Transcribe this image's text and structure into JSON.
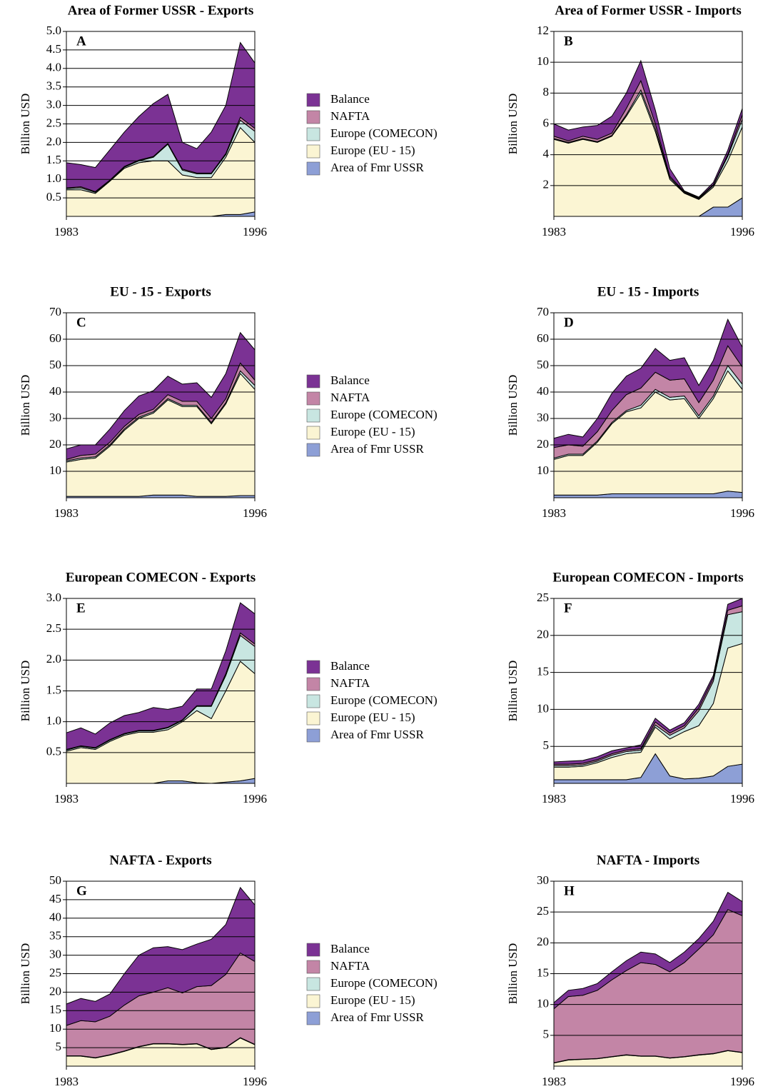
{
  "chart_data": [
    {
      "type": "area",
      "stacked": true,
      "title": "Area of Former USSR - Exports",
      "annotation": "A",
      "ylabel": "Billion USD",
      "legend": "right",
      "x": [
        1983,
        1984,
        1985,
        1986,
        1987,
        1988,
        1989,
        1990,
        1991,
        1992,
        1993,
        1994,
        1995,
        1996
      ],
      "xlim": [
        1983,
        1996
      ],
      "xticks": [
        1983,
        1996
      ],
      "ylim": [
        0,
        5
      ],
      "yticks": [
        0.5,
        {
          "value": 1,
          "label": "1.0"
        },
        1.5,
        {
          "value": 2,
          "label": "2.0"
        },
        2.5,
        {
          "value": 3,
          "label": "3.0"
        },
        3.5,
        {
          "value": 4,
          "label": "4.0"
        },
        4.5,
        {
          "value": 5,
          "label": "5.0"
        }
      ],
      "grid": true,
      "series": [
        {
          "name": "Balance",
          "color": "#7b3294",
          "values": [
            0.68,
            0.6,
            0.65,
            0.82,
            0.93,
            1.18,
            1.43,
            1.33,
            0.72,
            0.66,
            1.11,
            1.3,
            2.02,
            1.77
          ]
        },
        {
          "name": "NAFTA",
          "color": "#c385a6",
          "values": [
            0.02,
            0.03,
            0.02,
            0.01,
            0.02,
            0.02,
            0.02,
            0.02,
            0.03,
            0.02,
            0.02,
            0.03,
            0.08,
            0.08
          ]
        },
        {
          "name": "Europe (COMECON)",
          "color": "#c8e6e1",
          "values": [
            0.03,
            0.05,
            0.03,
            0.02,
            0.03,
            0.05,
            0.1,
            0.45,
            0.13,
            0.1,
            0.1,
            0.07,
            0.2,
            0.3
          ]
        },
        {
          "name": "Europe (EU - 15)",
          "color": "#fbf5d3",
          "values": [
            0.72,
            0.72,
            0.62,
            0.95,
            1.3,
            1.45,
            1.5,
            1.5,
            1.12,
            1.05,
            1.05,
            1.55,
            2.35,
            1.88
          ]
        },
        {
          "name": "Area of Fmr USSR",
          "color": "#8d9fd6",
          "values": [
            0,
            0,
            0,
            0,
            0,
            0,
            0,
            0,
            0,
            0,
            0,
            0.05,
            0.05,
            0.12
          ]
        }
      ]
    },
    {
      "type": "area",
      "stacked": true,
      "title": "Area of Former USSR - Imports",
      "annotation": "B",
      "ylabel": "Billion USD",
      "x": [
        1983,
        1984,
        1985,
        1986,
        1987,
        1988,
        1989,
        1990,
        1991,
        1992,
        1993,
        1994,
        1995,
        1996
      ],
      "xlim": [
        1983,
        1996
      ],
      "xticks": [
        1983,
        1996
      ],
      "ylim": [
        0,
        12
      ],
      "yticks": [
        2,
        4,
        6,
        8,
        10,
        12
      ],
      "grid": true,
      "series": [
        {
          "color": "#7b3294",
          "values": [
            0.8,
            0.7,
            0.6,
            0.9,
            1.1,
            1.0,
            1.3,
            0.9,
            0.5,
            0.05,
            0.05,
            0.15,
            0.3,
            0.4
          ]
        },
        {
          "color": "#c385a6",
          "values": [
            0.15,
            0.1,
            0.15,
            0.15,
            0.15,
            0.4,
            0.6,
            0.3,
            0.1,
            0.05,
            0.05,
            0.05,
            0.1,
            0.3
          ]
        },
        {
          "color": "#c8e6e1",
          "values": [
            0.05,
            0.05,
            0.05,
            0.05,
            0.05,
            0.1,
            0.2,
            0.2,
            0.1,
            0.05,
            0.05,
            0.1,
            0.3,
            0.5
          ]
        },
        {
          "color": "#fbf5d3",
          "values": [
            5.0,
            4.75,
            5.0,
            4.8,
            5.2,
            6.5,
            8.0,
            5.5,
            2.4,
            1.5,
            1.1,
            1.3,
            3.0,
            4.6
          ]
        },
        {
          "color": "#8d9fd6",
          "values": [
            0,
            0,
            0,
            0,
            0,
            0,
            0,
            0,
            0,
            0,
            0,
            0.6,
            0.6,
            1.2
          ]
        }
      ]
    },
    {
      "type": "area",
      "stacked": true,
      "title": "EU - 15 - Exports",
      "annotation": "C",
      "ylabel": "Billion USD",
      "legend": "right",
      "x": [
        1983,
        1984,
        1985,
        1986,
        1987,
        1988,
        1989,
        1990,
        1991,
        1992,
        1993,
        1994,
        1995,
        1996
      ],
      "xlim": [
        1983,
        1996
      ],
      "xticks": [
        1983,
        1996
      ],
      "ylim": [
        0,
        70
      ],
      "yticks": [
        10,
        20,
        30,
        40,
        50,
        60,
        70
      ],
      "grid": true,
      "series": [
        {
          "name": "Balance",
          "color": "#7b3294",
          "values": [
            4,
            4,
            3.5,
            5,
            6,
            7,
            7,
            7,
            6.5,
            7,
            8,
            9.5,
            11.5,
            11.5
          ]
        },
        {
          "name": "NAFTA",
          "color": "#c385a6",
          "values": [
            0.5,
            1,
            1,
            1,
            1,
            1,
            1,
            1.5,
            1.5,
            1.5,
            1.5,
            1.5,
            3,
            2
          ]
        },
        {
          "name": "Europe (COMECON)",
          "color": "#c8e6e1",
          "values": [
            0.5,
            0.5,
            0.5,
            0.5,
            0.5,
            0.5,
            0.5,
            0.5,
            0.5,
            0.5,
            0.5,
            0.5,
            1,
            1.5
          ]
        },
        {
          "name": "Europe (EU - 15)",
          "color": "#fbf5d3",
          "values": [
            13,
            14,
            14.5,
            19,
            25,
            29.5,
            31,
            36,
            33.5,
            34,
            27.5,
            35,
            46.2,
            40.2
          ]
        },
        {
          "name": "Area of Fmr USSR",
          "color": "#8d9fd6",
          "values": [
            0.5,
            0.5,
            0.5,
            0.5,
            0.5,
            0.5,
            1,
            1,
            1,
            0.5,
            0.5,
            0.5,
            0.8,
            0.8
          ]
        }
      ]
    },
    {
      "type": "area",
      "stacked": true,
      "title": "EU - 15 - Imports",
      "annotation": "D",
      "ylabel": "Billion USD",
      "x": [
        1983,
        1984,
        1985,
        1986,
        1987,
        1988,
        1989,
        1990,
        1991,
        1992,
        1993,
        1994,
        1995,
        1996
      ],
      "xlim": [
        1983,
        1996
      ],
      "xticks": [
        1983,
        1996
      ],
      "ylim": [
        0,
        70
      ],
      "yticks": [
        10,
        20,
        30,
        40,
        50,
        60,
        70
      ],
      "grid": true,
      "series": [
        {
          "color": "#7b3294",
          "values": [
            3.5,
            4,
            3.5,
            5,
            6.5,
            7,
            7.5,
            9,
            7.5,
            8,
            6.5,
            7.5,
            10,
            7.5
          ]
        },
        {
          "color": "#c385a6",
          "values": [
            4,
            3.5,
            3,
            3.5,
            4.5,
            6,
            6.5,
            6.5,
            6.5,
            6.5,
            5,
            6,
            7.5,
            6.5
          ]
        },
        {
          "color": "#c8e6e1",
          "values": [
            0.5,
            0.5,
            0.5,
            0.5,
            0.5,
            0.5,
            1,
            1,
            1,
            1,
            1,
            1,
            2,
            2
          ]
        },
        {
          "color": "#fbf5d3",
          "values": [
            13.5,
            15,
            15,
            20,
            26.5,
            31,
            32.5,
            38.5,
            35.5,
            36,
            28.5,
            36,
            45.5,
            39
          ]
        },
        {
          "color": "#8d9fd6",
          "values": [
            1,
            1,
            1,
            1,
            1.5,
            1.5,
            1.5,
            1.5,
            1.5,
            1.5,
            1.5,
            1.5,
            2.5,
            2
          ]
        }
      ]
    },
    {
      "type": "area",
      "stacked": true,
      "title": "European COMECON - Exports",
      "annotation": "E",
      "ylabel": "Billion USD",
      "legend": "right",
      "x": [
        1983,
        1984,
        1985,
        1986,
        1987,
        1988,
        1989,
        1990,
        1991,
        1992,
        1993,
        1994,
        1995,
        1996
      ],
      "xlim": [
        1983,
        1996
      ],
      "xticks": [
        1983,
        1996
      ],
      "ylim": [
        0,
        3
      ],
      "yticks": [
        0.5,
        {
          "value": 1,
          "label": "1.0"
        },
        1.5,
        {
          "value": 2,
          "label": "2.0"
        },
        2.5,
        {
          "value": 3,
          "label": "3.0"
        }
      ],
      "grid": true,
      "series": [
        {
          "name": "Balance",
          "color": "#7b3294",
          "values": [
            0.27,
            0.29,
            0.22,
            0.27,
            0.29,
            0.29,
            0.37,
            0.29,
            0.22,
            0.27,
            0.27,
            0.37,
            0.49,
            0.49
          ]
        },
        {
          "name": "NAFTA",
          "color": "#c385a6",
          "values": [
            0.01,
            0.01,
            0.01,
            0.01,
            0.01,
            0.01,
            0.01,
            0.01,
            0.01,
            0.01,
            0.01,
            0.03,
            0.04,
            0.04
          ]
        },
        {
          "name": "Europe (COMECON)",
          "color": "#c8e6e1",
          "values": [
            0.02,
            0.02,
            0.02,
            0.02,
            0.02,
            0.02,
            0.02,
            0.03,
            0.02,
            0.07,
            0.2,
            0.25,
            0.42,
            0.44
          ]
        },
        {
          "name": "Europe (EU - 15)",
          "color": "#fbf5d3",
          "values": [
            0.52,
            0.58,
            0.55,
            0.68,
            0.78,
            0.83,
            0.83,
            0.83,
            0.96,
            1.17,
            1.05,
            1.48,
            1.94,
            1.7
          ]
        },
        {
          "name": "Area of Fmr USSR",
          "color": "#8d9fd6",
          "values": [
            0,
            0,
            0,
            0,
            0,
            0,
            0,
            0.04,
            0.04,
            0.01,
            0,
            0.02,
            0.04,
            0.08
          ]
        }
      ]
    },
    {
      "type": "area",
      "stacked": true,
      "title": "European COMECON - Imports",
      "annotation": "F",
      "ylabel": "Billion USD",
      "x": [
        1983,
        1984,
        1985,
        1986,
        1987,
        1988,
        1989,
        1990,
        1991,
        1992,
        1993,
        1994,
        1995,
        1996
      ],
      "xlim": [
        1983,
        1996
      ],
      "xticks": [
        1983,
        1996
      ],
      "ylim": [
        0,
        25
      ],
      "yticks": [
        5,
        10,
        15,
        20,
        25
      ],
      "grid": true,
      "series": [
        {
          "color": "#7b3294",
          "values": [
            0.3,
            0.4,
            0.4,
            0.4,
            0.4,
            0.3,
            0.5,
            0.5,
            0.4,
            0.4,
            0.5,
            0.4,
            0.8,
            1.0
          ]
        },
        {
          "color": "#c385a6",
          "values": [
            0.2,
            0.2,
            0.2,
            0.2,
            0.2,
            0.2,
            0.2,
            0.4,
            0.3,
            0.3,
            0.4,
            0.4,
            0.6,
            0.8
          ]
        },
        {
          "color": "#c8e6e1",
          "values": [
            0.2,
            0.2,
            0.2,
            0.2,
            0.3,
            0.3,
            0.3,
            0.3,
            0.5,
            0.5,
            2.0,
            3.0,
            4.5,
            4.3
          ]
        },
        {
          "color": "#fbf5d3",
          "values": [
            1.7,
            1.7,
            1.8,
            2.3,
            3.0,
            3.5,
            3.4,
            3.6,
            5.0,
            6.4,
            7.1,
            9.8,
            16.0,
            16.3
          ]
        },
        {
          "color": "#8d9fd6",
          "values": [
            0.5,
            0.5,
            0.5,
            0.5,
            0.5,
            0.5,
            0.8,
            4.0,
            1.0,
            0.6,
            0.7,
            1.0,
            2.3,
            2.6
          ]
        }
      ]
    },
    {
      "type": "area",
      "stacked": true,
      "title": "NAFTA - Exports",
      "annotation": "G",
      "ylabel": "Billion USD",
      "legend": "right",
      "x": [
        1983,
        1984,
        1985,
        1986,
        1987,
        1988,
        1989,
        1990,
        1991,
        1992,
        1993,
        1994,
        1995,
        1996
      ],
      "xlim": [
        1983,
        1996
      ],
      "xticks": [
        1983,
        1996
      ],
      "ylim": [
        0,
        50
      ],
      "yticks": [
        5,
        10,
        15,
        20,
        25,
        30,
        35,
        40,
        45,
        50
      ],
      "grid": true,
      "series": [
        {
          "name": "Balance",
          "color": "#7b3294",
          "values": [
            5.8,
            6.0,
            5.5,
            6.0,
            8.5,
            11,
            12,
            11.1,
            11.7,
            11.5,
            12.5,
            13.5,
            17.7,
            15.3
          ]
        },
        {
          "name": "NAFTA",
          "color": "#c385a6",
          "values": [
            8.2,
            9.5,
            9.7,
            10.4,
            12.4,
            13.7,
            13.9,
            15.1,
            13.9,
            15.4,
            17.2,
            19.7,
            22.9,
            22.4
          ]
        },
        {
          "name": "Europe (COMECON)",
          "color": "#c8e6e1",
          "values": [
            0.1,
            0.1,
            0.1,
            0.1,
            0.1,
            0.1,
            0.1,
            0.1,
            0.1,
            0.1,
            0.1,
            0.1,
            0.1,
            0.1
          ]
        },
        {
          "name": "Europe (EU - 15)",
          "color": "#fbf5d3",
          "values": [
            2.7,
            2.7,
            2.2,
            3.0,
            4.0,
            5.2,
            6.0,
            6.0,
            5.8,
            6.0,
            4.5,
            5.0,
            7.6,
            5.8
          ]
        },
        {
          "name": "Area of Fmr USSR",
          "color": "#8d9fd6",
          "values": [
            0,
            0,
            0,
            0,
            0,
            0,
            0,
            0,
            0,
            0,
            0,
            0,
            0,
            0
          ]
        }
      ]
    },
    {
      "type": "area",
      "stacked": true,
      "title": "NAFTA - Imports",
      "annotation": "H",
      "ylabel": "Billion USD",
      "x": [
        1983,
        1984,
        1985,
        1986,
        1987,
        1988,
        1989,
        1990,
        1991,
        1992,
        1993,
        1994,
        1995,
        1996
      ],
      "xlim": [
        1983,
        1996
      ],
      "xticks": [
        1983,
        1996
      ],
      "ylim": [
        0,
        30
      ],
      "yticks": [
        5,
        10,
        15,
        20,
        25,
        30
      ],
      "grid": true,
      "series": [
        {
          "color": "#7b3294",
          "values": [
            1.0,
            1.0,
            1.1,
            1.1,
            1.3,
            1.6,
            1.7,
            1.7,
            1.5,
            1.7,
            1.7,
            2.2,
            2.8,
            2.3
          ]
        },
        {
          "color": "#c385a6",
          "values": [
            8.75,
            10.25,
            10.35,
            11.05,
            12.45,
            13.65,
            15.15,
            14.85,
            13.95,
            15.25,
            17.15,
            19.25,
            22.85,
            22.15
          ]
        },
        {
          "color": "#c8e6e1",
          "values": [
            0.05,
            0.05,
            0.05,
            0.05,
            0.05,
            0.05,
            0.05,
            0.05,
            0.05,
            0.05,
            0.05,
            0.05,
            0.05,
            0.05
          ]
        },
        {
          "color": "#fbf5d3",
          "values": [
            0.5,
            1.0,
            1.1,
            1.2,
            1.5,
            1.8,
            1.6,
            1.6,
            1.3,
            1.5,
            1.8,
            2.0,
            2.5,
            2.2
          ]
        },
        {
          "color": "#8d9fd6",
          "values": [
            0,
            0,
            0,
            0,
            0,
            0,
            0,
            0,
            0,
            0,
            0,
            0,
            0,
            0
          ]
        }
      ]
    }
  ]
}
